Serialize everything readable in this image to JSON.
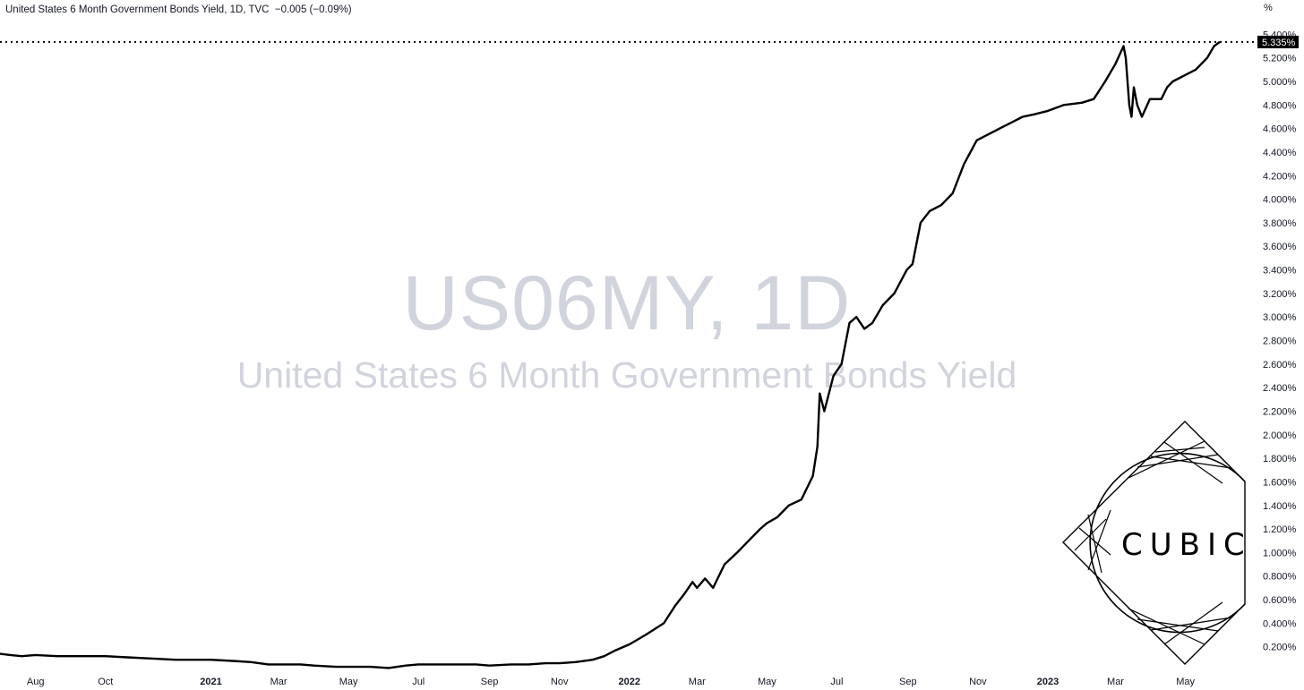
{
  "header": {
    "title": "United States 6 Month Government Bonds Yield, 1D, TVC",
    "change": "−0.005 (−0.09%)"
  },
  "watermark": {
    "symbol": "US06MY, 1D",
    "description": "United States 6 Month Government Bonds Yield"
  },
  "axis_unit": "%",
  "logo": {
    "text": "CUBIC"
  },
  "colors": {
    "line": "#000000",
    "badge": "#000000",
    "watermark": "#d1d4dc"
  },
  "chart_data": {
    "type": "line",
    "title": "United States 6 Month Government Bonds Yield, 1D, TVC",
    "xlabel": "",
    "ylabel": "%",
    "grid": false,
    "ylim": [
      0.0,
      5.55
    ],
    "xlim": [
      "2020-07-01",
      "2023-05-31"
    ],
    "last_value": 5.335,
    "last_value_label": "5.335%",
    "y_ticks": [
      "0.200%",
      "0.400%",
      "0.600%",
      "0.800%",
      "1.000%",
      "1.200%",
      "1.400%",
      "1.600%",
      "1.800%",
      "2.000%",
      "2.200%",
      "2.400%",
      "2.600%",
      "2.800%",
      "3.000%",
      "3.200%",
      "3.400%",
      "3.600%",
      "3.800%",
      "4.000%",
      "4.200%",
      "4.400%",
      "4.600%",
      "4.800%",
      "5.000%",
      "5.200%",
      "5.400%"
    ],
    "y_tick_values": [
      0.2,
      0.4,
      0.6,
      0.8,
      1.0,
      1.2,
      1.4,
      1.6,
      1.8,
      2.0,
      2.2,
      2.4,
      2.6,
      2.8,
      3.0,
      3.2,
      3.4,
      3.6,
      3.8,
      4.0,
      4.2,
      4.4,
      4.6,
      4.8,
      5.0,
      5.2,
      5.4
    ],
    "x_ticks": [
      {
        "label": "Aug",
        "date": "2020-08-01",
        "bold": false
      },
      {
        "label": "Oct",
        "date": "2020-10-01",
        "bold": false
      },
      {
        "label": "2021",
        "date": "2021-01-01",
        "bold": true
      },
      {
        "label": "Mar",
        "date": "2021-03-01",
        "bold": false
      },
      {
        "label": "May",
        "date": "2021-05-01",
        "bold": false
      },
      {
        "label": "Jul",
        "date": "2021-07-01",
        "bold": false
      },
      {
        "label": "Sep",
        "date": "2021-09-01",
        "bold": false
      },
      {
        "label": "Nov",
        "date": "2021-11-01",
        "bold": false
      },
      {
        "label": "2022",
        "date": "2022-01-01",
        "bold": true
      },
      {
        "label": "Mar",
        "date": "2022-03-01",
        "bold": false
      },
      {
        "label": "May",
        "date": "2022-05-01",
        "bold": false
      },
      {
        "label": "Jul",
        "date": "2022-07-01",
        "bold": false
      },
      {
        "label": "Sep",
        "date": "2022-09-01",
        "bold": false
      },
      {
        "label": "Nov",
        "date": "2022-11-01",
        "bold": false
      },
      {
        "label": "2023",
        "date": "2023-01-01",
        "bold": true
      },
      {
        "label": "Mar",
        "date": "2023-03-01",
        "bold": false
      },
      {
        "label": "May",
        "date": "2023-05-01",
        "bold": false
      }
    ],
    "series": [
      {
        "points": [
          [
            "2020-07-01",
            0.14
          ],
          [
            "2020-07-10",
            0.13
          ],
          [
            "2020-07-20",
            0.12
          ],
          [
            "2020-08-01",
            0.13
          ],
          [
            "2020-08-20",
            0.12
          ],
          [
            "2020-09-10",
            0.12
          ],
          [
            "2020-10-01",
            0.12
          ],
          [
            "2020-10-20",
            0.11
          ],
          [
            "2020-11-10",
            0.1
          ],
          [
            "2020-12-01",
            0.09
          ],
          [
            "2020-12-20",
            0.09
          ],
          [
            "2021-01-01",
            0.09
          ],
          [
            "2021-01-20",
            0.08
          ],
          [
            "2021-02-05",
            0.07
          ],
          [
            "2021-02-20",
            0.05
          ],
          [
            "2021-03-01",
            0.05
          ],
          [
            "2021-03-20",
            0.05
          ],
          [
            "2021-04-01",
            0.04
          ],
          [
            "2021-04-20",
            0.03
          ],
          [
            "2021-05-01",
            0.03
          ],
          [
            "2021-05-20",
            0.03
          ],
          [
            "2021-06-05",
            0.02
          ],
          [
            "2021-06-20",
            0.04
          ],
          [
            "2021-07-01",
            0.05
          ],
          [
            "2021-07-20",
            0.05
          ],
          [
            "2021-08-05",
            0.05
          ],
          [
            "2021-08-20",
            0.05
          ],
          [
            "2021-09-01",
            0.04
          ],
          [
            "2021-09-20",
            0.05
          ],
          [
            "2021-10-05",
            0.05
          ],
          [
            "2021-10-20",
            0.06
          ],
          [
            "2021-11-01",
            0.06
          ],
          [
            "2021-11-15",
            0.07
          ],
          [
            "2021-11-30",
            0.09
          ],
          [
            "2021-12-10",
            0.12
          ],
          [
            "2021-12-20",
            0.17
          ],
          [
            "2022-01-01",
            0.22
          ],
          [
            "2022-01-15",
            0.3
          ],
          [
            "2022-01-31",
            0.4
          ],
          [
            "2022-02-10",
            0.55
          ],
          [
            "2022-02-18",
            0.65
          ],
          [
            "2022-02-25",
            0.75
          ],
          [
            "2022-03-01",
            0.7
          ],
          [
            "2022-03-08",
            0.78
          ],
          [
            "2022-03-15",
            0.7
          ],
          [
            "2022-03-25",
            0.9
          ],
          [
            "2022-04-05",
            1.0
          ],
          [
            "2022-04-15",
            1.1
          ],
          [
            "2022-04-25",
            1.2
          ],
          [
            "2022-05-01",
            1.25
          ],
          [
            "2022-05-10",
            1.3
          ],
          [
            "2022-05-20",
            1.4
          ],
          [
            "2022-05-31",
            1.45
          ],
          [
            "2022-06-05",
            1.55
          ],
          [
            "2022-06-10",
            1.65
          ],
          [
            "2022-06-14",
            1.9
          ],
          [
            "2022-06-16",
            2.35
          ],
          [
            "2022-06-20",
            2.2
          ],
          [
            "2022-06-28",
            2.5
          ],
          [
            "2022-07-05",
            2.6
          ],
          [
            "2022-07-12",
            2.95
          ],
          [
            "2022-07-18",
            3.0
          ],
          [
            "2022-07-25",
            2.9
          ],
          [
            "2022-08-01",
            2.95
          ],
          [
            "2022-08-10",
            3.1
          ],
          [
            "2022-08-20",
            3.2
          ],
          [
            "2022-08-31",
            3.4
          ],
          [
            "2022-09-05",
            3.45
          ],
          [
            "2022-09-12",
            3.8
          ],
          [
            "2022-09-20",
            3.9
          ],
          [
            "2022-09-30",
            3.95
          ],
          [
            "2022-10-10",
            4.05
          ],
          [
            "2022-10-20",
            4.3
          ],
          [
            "2022-10-31",
            4.5
          ],
          [
            "2022-11-10",
            4.55
          ],
          [
            "2022-11-20",
            4.6
          ],
          [
            "2022-11-30",
            4.65
          ],
          [
            "2022-12-10",
            4.7
          ],
          [
            "2022-12-20",
            4.72
          ],
          [
            "2023-01-01",
            4.75
          ],
          [
            "2023-01-15",
            4.8
          ],
          [
            "2023-01-31",
            4.82
          ],
          [
            "2023-02-10",
            4.85
          ],
          [
            "2023-02-20",
            5.0
          ],
          [
            "2023-03-01",
            5.15
          ],
          [
            "2023-03-08",
            5.3
          ],
          [
            "2023-03-10",
            5.2
          ],
          [
            "2023-03-13",
            4.8
          ],
          [
            "2023-03-15",
            4.7
          ],
          [
            "2023-03-17",
            4.95
          ],
          [
            "2023-03-20",
            4.8
          ],
          [
            "2023-03-24",
            4.7
          ],
          [
            "2023-03-31",
            4.85
          ],
          [
            "2023-04-10",
            4.85
          ],
          [
            "2023-04-15",
            4.95
          ],
          [
            "2023-04-20",
            5.0
          ],
          [
            "2023-04-30",
            5.05
          ],
          [
            "2023-05-10",
            5.1
          ],
          [
            "2023-05-20",
            5.2
          ],
          [
            "2023-05-26",
            5.3
          ],
          [
            "2023-05-31",
            5.335
          ]
        ]
      }
    ]
  }
}
